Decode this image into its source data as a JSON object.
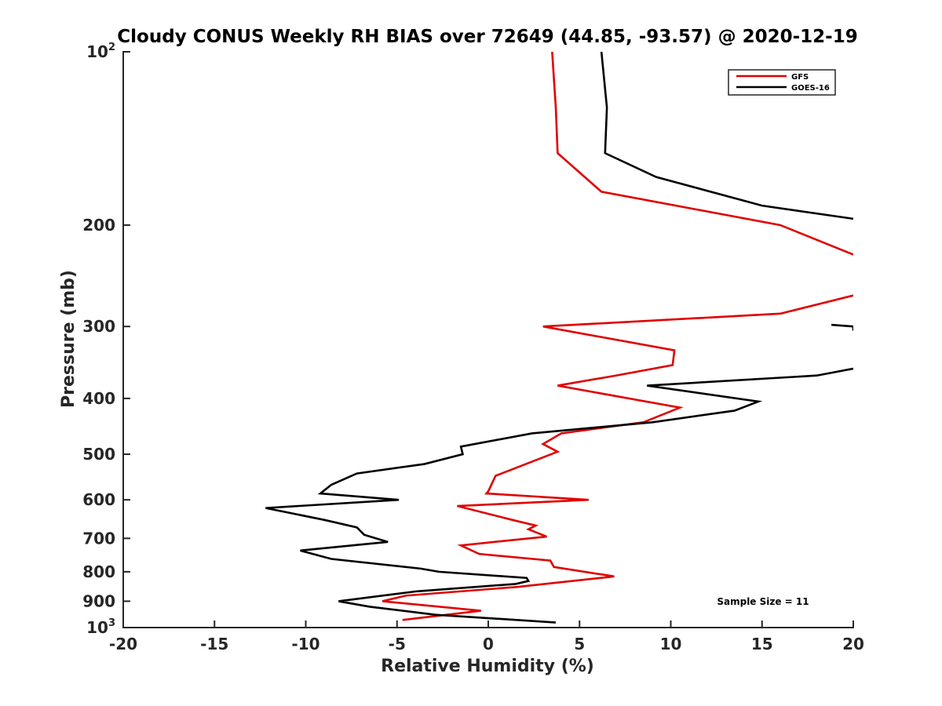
{
  "chart_data": {
    "type": "line",
    "title": "Cloudy CONUS Weekly RH BIAS over 72649 (44.85, -93.57) @ 2020-12-19",
    "xlabel": "Relative Humidity (%)",
    "ylabel": "Pressure (mb)",
    "xlim": [
      -20,
      20
    ],
    "ylim": [
      100,
      1000
    ],
    "yscale": "log",
    "yreversed": true,
    "x_ticks": [
      "-20",
      "-15",
      "-10",
      "-5",
      "0",
      "5",
      "10",
      "15",
      "20"
    ],
    "y_ticks": [
      {
        "value": 100,
        "base": "10",
        "exp": "2"
      },
      {
        "value": 200,
        "label": "200"
      },
      {
        "value": 300,
        "label": "300"
      },
      {
        "value": 400,
        "label": "400"
      },
      {
        "value": 500,
        "label": "500"
      },
      {
        "value": 600,
        "label": "600"
      },
      {
        "value": 700,
        "label": "700"
      },
      {
        "value": 800,
        "label": "800"
      },
      {
        "value": 900,
        "label": "900"
      },
      {
        "value": 1000,
        "base": "10",
        "exp": "3"
      }
    ],
    "legend_position": "top-right",
    "annotation": "Sample Size = 11",
    "series": [
      {
        "name": "GFS",
        "color": "#e00000",
        "points": [
          [
            3.5,
            100
          ],
          [
            3.7,
            125
          ],
          [
            3.8,
            150
          ],
          [
            6.2,
            175
          ],
          [
            16,
            200
          ],
          [
            20,
            225
          ],
          [
            null,
            null
          ],
          [
            20,
            265
          ],
          [
            16,
            285
          ],
          [
            3,
            300
          ],
          [
            10.2,
            330
          ],
          [
            10.1,
            350
          ],
          [
            7,
            365
          ],
          [
            3.8,
            380
          ],
          [
            10.5,
            415
          ],
          [
            8.5,
            440
          ],
          [
            4,
            460
          ],
          [
            3,
            480
          ],
          [
            3.8,
            495
          ],
          [
            0.4,
            545
          ],
          [
            0,
            580
          ],
          [
            -0.1,
            585
          ],
          [
            5.5,
            600
          ],
          [
            -1.7,
            615
          ],
          [
            1.3,
            650
          ],
          [
            2.6,
            665
          ],
          [
            2.2,
            675
          ],
          [
            3.2,
            695
          ],
          [
            -1.5,
            720
          ],
          [
            -0.5,
            745
          ],
          [
            3.4,
            765
          ],
          [
            3.6,
            785
          ],
          [
            6.9,
            815
          ],
          [
            1.6,
            850
          ],
          [
            -4.5,
            880
          ],
          [
            -5.8,
            900
          ],
          [
            -0.4,
            935
          ],
          [
            -4.7,
            970
          ]
        ]
      },
      {
        "name": "GOES-16",
        "color": "#000000",
        "points": [
          [
            6.2,
            100
          ],
          [
            6.5,
            125
          ],
          [
            6.4,
            150
          ],
          [
            9.2,
            165
          ],
          [
            15,
            185
          ],
          [
            20,
            195
          ],
          [
            null,
            null
          ],
          [
            18.8,
            298
          ],
          [
            20,
            300
          ],
          [
            20,
            305
          ],
          [
            null,
            null
          ],
          [
            20,
            355
          ],
          [
            18,
            365
          ],
          [
            8.7,
            380
          ],
          [
            14.8,
            405
          ],
          [
            13.5,
            420
          ],
          [
            9,
            440
          ],
          [
            2.4,
            460
          ],
          [
            -1.5,
            485
          ],
          [
            -1.4,
            500
          ],
          [
            -3.5,
            520
          ],
          [
            -7.2,
            540
          ],
          [
            -8.6,
            565
          ],
          [
            -9.2,
            585
          ],
          [
            -4.9,
            600
          ],
          [
            -12.2,
            620
          ],
          [
            -9,
            650
          ],
          [
            -7.2,
            670
          ],
          [
            -6.8,
            690
          ],
          [
            -5.5,
            710
          ],
          [
            -10.3,
            735
          ],
          [
            -8.6,
            760
          ],
          [
            -3.7,
            790
          ],
          [
            -2.7,
            800
          ],
          [
            2.1,
            820
          ],
          [
            2.2,
            830
          ],
          [
            1.5,
            840
          ],
          [
            -3.9,
            865
          ],
          [
            -8.2,
            900
          ],
          [
            -6.5,
            920
          ],
          [
            -2.9,
            950
          ],
          [
            3.7,
            980
          ]
        ]
      }
    ]
  }
}
